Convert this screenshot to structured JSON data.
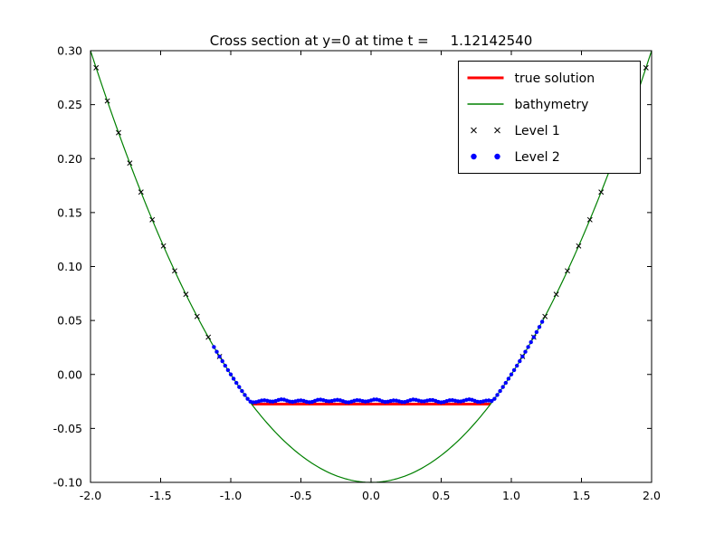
{
  "chart_data": {
    "type": "line",
    "title": "Cross section at y=0 at time t =     1.12142540",
    "xlabel": "",
    "ylabel": "",
    "xlim": [
      -2.0,
      2.0
    ],
    "ylim": [
      -0.1,
      0.3
    ],
    "grid": false,
    "background": "#ffffff",
    "axes_color": "#000000",
    "x_tick_values": [
      -2.0,
      -1.5,
      -1.0,
      -0.5,
      0.0,
      0.5,
      1.0,
      1.5,
      2.0
    ],
    "x_tick_labels": [
      "-2.0",
      "-1.5",
      "-1.0",
      "-0.5",
      "0.0",
      "0.5",
      "1.0",
      "1.5",
      "2.0"
    ],
    "y_tick_values": [
      -0.1,
      -0.05,
      0.0,
      0.05,
      0.1,
      0.15,
      0.2,
      0.25,
      0.3
    ],
    "y_tick_labels": [
      "-0.10",
      "-0.05",
      "0.00",
      "0.05",
      "0.10",
      "0.15",
      "0.20",
      "0.25",
      "0.30"
    ],
    "series": [
      {
        "name": "true solution",
        "type": "line",
        "color": "#ff0000",
        "linewidth": 3,
        "x": [
          -0.852,
          0.852
        ],
        "y": [
          -0.0275,
          -0.0275
        ]
      },
      {
        "name": "bathymetry",
        "type": "line",
        "color": "#008000",
        "linewidth": 1.2,
        "formula": "y = 0.1*x^2 - 0.1",
        "coeff_a": 0.1,
        "coeff_c": -0.1,
        "x_range": [
          -2.0,
          2.0
        ],
        "y_at_center": -0.1,
        "y_at_edges": 0.3,
        "sample_step": 0.02
      },
      {
        "name": "Level 1",
        "type": "scatter",
        "marker": "x",
        "color": "#000000",
        "on_curve": "bathymetry",
        "x": [
          -1.96,
          -1.88,
          -1.8,
          -1.72,
          -1.64,
          -1.56,
          -1.48,
          -1.4,
          -1.32,
          -1.24,
          -1.16,
          -1.08,
          1.08,
          1.16,
          1.24,
          1.32,
          1.4,
          1.48,
          1.56,
          1.64,
          1.72,
          1.8,
          1.88,
          1.96
        ]
      },
      {
        "name": "Level 2",
        "type": "scatter",
        "marker": "circle",
        "color": "#0000ff",
        "x_start": -1.12,
        "x_end": 1.22,
        "x_step": 0.02,
        "water_surface": -0.0245,
        "rule": "y = max(bathymetry(x), water_surface + small noise)",
        "noise": {
          "amp1": 0.0009,
          "freq1": 47,
          "amp2": 0.0005,
          "freq2": 19,
          "phase2": 1.3
        }
      }
    ],
    "legend": {
      "position": "upper right",
      "entries": [
        {
          "label": "true solution",
          "type": "line",
          "color": "#ff0000",
          "linewidth": 3
        },
        {
          "label": "bathymetry",
          "type": "line",
          "color": "#008000",
          "linewidth": 1.5
        },
        {
          "label": "Level 1",
          "type": "scatter",
          "marker": "x",
          "color": "#000000"
        },
        {
          "label": "Level 2",
          "type": "scatter",
          "marker": "circle",
          "color": "#0000ff"
        }
      ]
    }
  }
}
